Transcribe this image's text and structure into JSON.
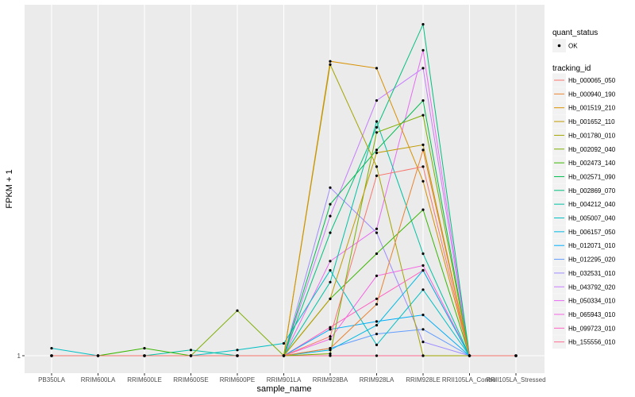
{
  "chart_data": {
    "type": "line",
    "xlabel": "sample_name",
    "ylabel": "FPKM + 1",
    "y_tick_labels": [
      "1"
    ],
    "categories": [
      "PB350LA",
      "RRIM600LA",
      "RRIM600LE",
      "RRIM600SE",
      "RRIM600PE",
      "RRIM901LA",
      "RRIM928BA",
      "RRIM928LA",
      "RRIM928LE",
      "RRII105LA_Control",
      "RRII105LA_Stressed"
    ],
    "y_scale": "log",
    "ylim": [
      1,
      3500
    ],
    "grid": true,
    "legend_position": "right",
    "legends": {
      "quant_status": {
        "title": "quant_status",
        "items": [
          "OK"
        ]
      },
      "tracking_id": {
        "title": "tracking_id"
      }
    },
    "series": [
      {
        "name": "Hb_000065_050",
        "color": "#F8766D",
        "values": [
          1,
          1,
          1,
          1,
          1,
          1,
          1.6,
          80,
          100,
          1,
          1
        ]
      },
      {
        "name": "Hb_000940_190",
        "color": "#EA8331",
        "values": [
          1,
          1,
          1,
          1,
          1,
          1,
          1.2,
          3.5,
          150,
          1,
          1
        ]
      },
      {
        "name": "Hb_001519_210",
        "color": "#D89000",
        "values": [
          1,
          1,
          1,
          1,
          1,
          1,
          1300,
          1100,
          70,
          1,
          1
        ]
      },
      {
        "name": "Hb_001652_110",
        "color": "#C09B00",
        "values": [
          1,
          1,
          1,
          1,
          1,
          1,
          4,
          140,
          170,
          1,
          1
        ]
      },
      {
        "name": "Hb_001780_010",
        "color": "#A3A500",
        "values": [
          1,
          1,
          1,
          1,
          1,
          1,
          1200,
          100,
          1,
          1,
          1
        ]
      },
      {
        "name": "Hb_002092_040",
        "color": "#7CAE00",
        "values": [
          1,
          1,
          1,
          1,
          3,
          1,
          1.05,
          230,
          350,
          1,
          1
        ]
      },
      {
        "name": "Hb_002473_140",
        "color": "#39B600",
        "values": [
          1,
          1,
          1.2,
          1,
          1,
          1,
          4,
          12,
          35,
          1,
          1
        ]
      },
      {
        "name": "Hb_002571_090",
        "color": "#00BB4E",
        "values": [
          1,
          1,
          1,
          1,
          1,
          1,
          40,
          150,
          500,
          1,
          1
        ]
      },
      {
        "name": "Hb_002869_070",
        "color": "#00BF7D",
        "values": [
          1,
          1,
          1,
          1,
          1,
          1,
          20,
          260,
          3200,
          1,
          1
        ]
      },
      {
        "name": "Hb_004212_040",
        "color": "#00C1A3",
        "values": [
          1,
          1,
          1,
          1.15,
          1,
          1,
          6,
          300,
          12,
          1,
          1
        ]
      },
      {
        "name": "Hb_005007_040",
        "color": "#00BFC4",
        "values": [
          1.2,
          1,
          1,
          1,
          1.15,
          1.35,
          8,
          1.3,
          5,
          1,
          1
        ]
      },
      {
        "name": "Hb_006157_050",
        "color": "#00B9E3",
        "values": [
          1,
          1,
          1,
          1,
          1,
          1,
          1.15,
          2.1,
          8,
          1,
          1
        ]
      },
      {
        "name": "Hb_012071_010",
        "color": "#00ADFA",
        "values": [
          1,
          1,
          1,
          1,
          1,
          1,
          1.9,
          2.3,
          2.7,
          1,
          1
        ]
      },
      {
        "name": "Hb_012295_020",
        "color": "#619CFF",
        "values": [
          1,
          1,
          1,
          1,
          1,
          1,
          1.2,
          1.7,
          1.9,
          1,
          1
        ]
      },
      {
        "name": "Hb_032531_010",
        "color": "#9F8CFF",
        "values": [
          1,
          1,
          1,
          1,
          1,
          1,
          60,
          20,
          1.4,
          1,
          1
        ]
      },
      {
        "name": "Hb_043792_020",
        "color": "#C77CFF",
        "values": [
          1,
          1,
          1,
          1,
          1,
          1,
          30,
          500,
          1100,
          1,
          1
        ]
      },
      {
        "name": "Hb_050334_010",
        "color": "#E76BF3",
        "values": [
          1,
          1,
          1,
          1,
          1,
          1,
          10,
          22,
          1700,
          1,
          1
        ]
      },
      {
        "name": "Hb_065943_010",
        "color": "#F564E3",
        "values": [
          1,
          1,
          1,
          1,
          1,
          1,
          1.5,
          7,
          9,
          1,
          1
        ]
      },
      {
        "name": "Hb_099723_010",
        "color": "#FF61C3",
        "values": [
          1,
          1,
          1,
          1,
          1,
          1,
          2,
          4,
          8,
          1,
          1
        ]
      },
      {
        "name": "Hb_155556_010",
        "color": "#FF6C91",
        "values": [
          1,
          1,
          1,
          1,
          1,
          1,
          1,
          1,
          1,
          1,
          1
        ]
      }
    ]
  }
}
